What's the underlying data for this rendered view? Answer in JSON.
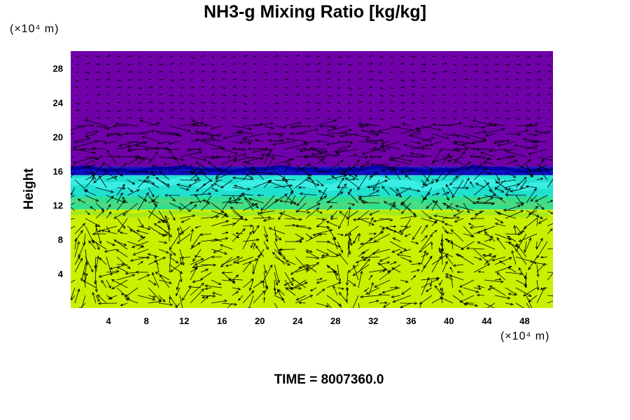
{
  "chart_data": {
    "type": "heatmap",
    "title": "NH3-g Mixing Ratio [kg/kg]",
    "ylabel": "Height",
    "xunit": "(×10⁴ m)",
    "yunit": "(×10⁴ m)",
    "xlim": [
      0,
      51
    ],
    "ylim": [
      0,
      30
    ],
    "xticks": [
      4,
      8,
      12,
      16,
      20,
      24,
      28,
      32,
      36,
      40,
      44,
      48
    ],
    "yticks": [
      4,
      8,
      12,
      16,
      20,
      24,
      28
    ],
    "layers": [
      {
        "name": "upper",
        "from": 16.5,
        "to": 30,
        "color": "#7000a8"
      },
      {
        "name": "transition",
        "from": 15.5,
        "to": 16.5,
        "color": "#1010c0"
      },
      {
        "name": "mid-high",
        "from": 13,
        "to": 15.5,
        "color": "#20e0d0"
      },
      {
        "name": "mid",
        "from": 11.5,
        "to": 13,
        "color": "#30e090"
      },
      {
        "name": "lower",
        "from": 0,
        "to": 11.5,
        "color": "#c8f000"
      }
    ],
    "vector_field": "velocity arrows overlay"
  },
  "time_label": "TIME = 8007360.0"
}
